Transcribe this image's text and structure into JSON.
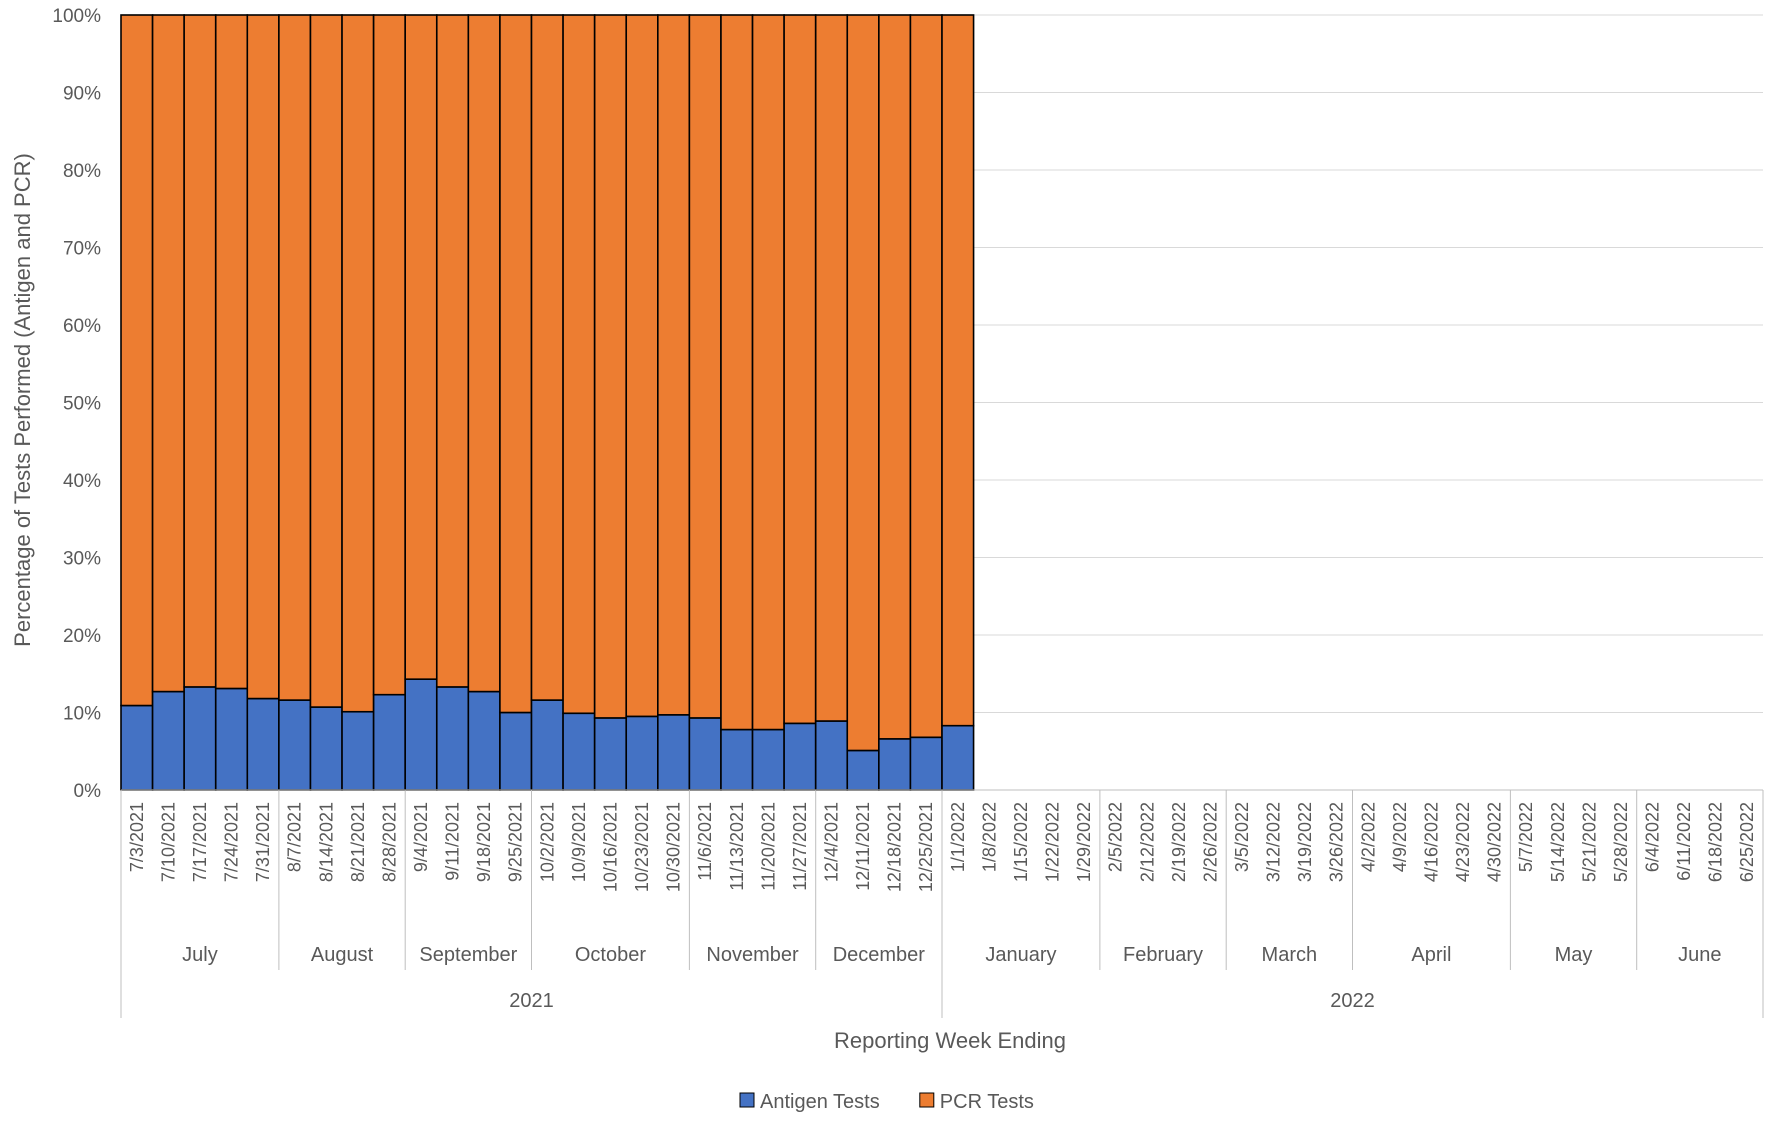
{
  "chart_data": {
    "type": "bar",
    "stacked": true,
    "percent_stacked": true,
    "xlabel": "Reporting Week Ending",
    "ylabel": "Percentage of Tests Performed (Antigen and PCR)",
    "ylim": [
      0,
      100
    ],
    "yticks": [
      "0%",
      "10%",
      "20%",
      "30%",
      "40%",
      "50%",
      "60%",
      "70%",
      "80%",
      "90%",
      "100%"
    ],
    "grid": "horizontal",
    "legend_position": "bottom",
    "categories": [
      "7/3/2021",
      "7/10/2021",
      "7/17/2021",
      "7/24/2021",
      "7/31/2021",
      "8/7/2021",
      "8/14/2021",
      "8/21/2021",
      "8/28/2021",
      "9/4/2021",
      "9/11/2021",
      "9/18/2021",
      "9/25/2021",
      "10/2/2021",
      "10/9/2021",
      "10/16/2021",
      "10/23/2021",
      "10/30/2021",
      "11/6/2021",
      "11/13/2021",
      "11/20/2021",
      "11/27/2021",
      "12/4/2021",
      "12/11/2021",
      "12/18/2021",
      "12/25/2021",
      "1/1/2022",
      "1/8/2022",
      "1/15/2022",
      "1/22/2022",
      "1/29/2022",
      "2/5/2022",
      "2/12/2022",
      "2/19/2022",
      "2/26/2022",
      "3/5/2022",
      "3/12/2022",
      "3/19/2022",
      "3/26/2022",
      "4/2/2022",
      "4/9/2022",
      "4/16/2022",
      "4/23/2022",
      "4/30/2022",
      "5/7/2022",
      "5/14/2022",
      "5/21/2022",
      "5/28/2022",
      "6/4/2022",
      "6/11/2022",
      "6/18/2022",
      "6/25/2022"
    ],
    "months": [
      {
        "label": "July",
        "count": 5
      },
      {
        "label": "August",
        "count": 4
      },
      {
        "label": "September",
        "count": 4
      },
      {
        "label": "October",
        "count": 5
      },
      {
        "label": "November",
        "count": 4
      },
      {
        "label": "December",
        "count": 4
      },
      {
        "label": "January",
        "count": 5
      },
      {
        "label": "February",
        "count": 4
      },
      {
        "label": "March",
        "count": 4
      },
      {
        "label": "April",
        "count": 5
      },
      {
        "label": "May",
        "count": 4
      },
      {
        "label": "June",
        "count": 4
      }
    ],
    "years": [
      {
        "label": "2021",
        "count": 26
      },
      {
        "label": "2022",
        "count": 26
      }
    ],
    "series": [
      {
        "name": "Antigen Tests",
        "color": "#4472c4",
        "values": [
          10.9,
          12.7,
          13.3,
          13.1,
          11.8,
          11.6,
          10.7,
          10.1,
          12.3,
          14.3,
          13.3,
          12.7,
          10.0,
          11.6,
          9.9,
          9.3,
          9.5,
          9.7,
          9.3,
          7.8,
          7.8,
          8.6,
          8.9,
          5.1,
          6.6,
          6.8,
          8.3,
          null,
          null,
          null,
          null,
          null,
          null,
          null,
          null,
          null,
          null,
          null,
          null,
          null,
          null,
          null,
          null,
          null,
          null,
          null,
          null,
          null,
          null,
          null,
          null,
          null
        ]
      },
      {
        "name": "PCR Tests",
        "color": "#ed7d31",
        "values": [
          89.1,
          87.3,
          86.7,
          86.9,
          88.2,
          88.4,
          89.3,
          89.9,
          87.7,
          85.7,
          86.7,
          87.3,
          90.0,
          88.4,
          90.1,
          90.7,
          90.5,
          90.3,
          90.7,
          92.2,
          92.2,
          91.4,
          91.1,
          94.9,
          93.4,
          93.2,
          91.7,
          null,
          null,
          null,
          null,
          null,
          null,
          null,
          null,
          null,
          null,
          null,
          null,
          null,
          null,
          null,
          null,
          null,
          null,
          null,
          null,
          null,
          null,
          null,
          null,
          null
        ]
      }
    ]
  }
}
